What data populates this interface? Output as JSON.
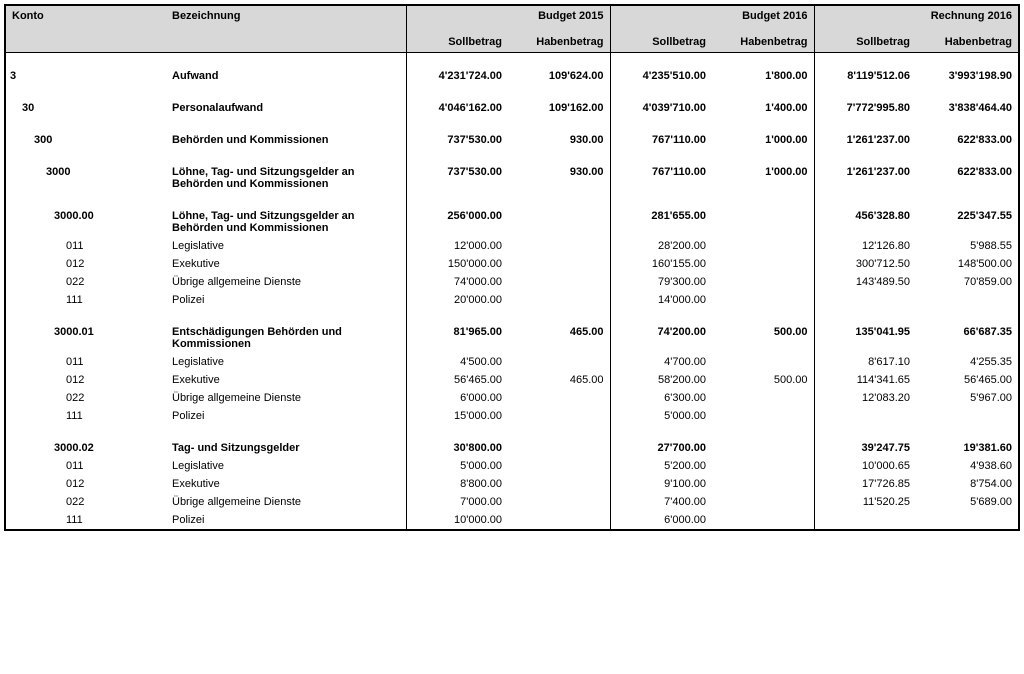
{
  "header": {
    "konto": "Konto",
    "bezeichnung": "Bezeichnung",
    "group_budget2015": "Budget 2015",
    "group_budget2016": "Budget 2016",
    "group_rechnung2016": "Rechnung 2016",
    "soll": "Sollbetrag",
    "haben": "Habenbetrag"
  },
  "rows": [
    {
      "indent": 0,
      "bold": true,
      "konto": "3",
      "bez": "Aufwand",
      "b15s": "4'231'724.00",
      "b15h": "109'624.00",
      "b16s": "4'235'510.00",
      "b16h": "1'800.00",
      "r16s": "8'119'512.06",
      "r16h": "3'993'198.90"
    },
    {
      "indent": 1,
      "bold": true,
      "konto": "30",
      "bez": "Personalaufwand",
      "b15s": "4'046'162.00",
      "b15h": "109'162.00",
      "b16s": "4'039'710.00",
      "b16h": "1'400.00",
      "r16s": "7'772'995.80",
      "r16h": "3'838'464.40"
    },
    {
      "indent": 2,
      "bold": true,
      "konto": "300",
      "bez": "Behörden und Kommissionen",
      "b15s": "737'530.00",
      "b15h": "930.00",
      "b16s": "767'110.00",
      "b16h": "1'000.00",
      "r16s": "1'261'237.00",
      "r16h": "622'833.00"
    },
    {
      "indent": 3,
      "bold": true,
      "konto": "3000",
      "bez": "Löhne, Tag- und Sitzungsgelder an Behörden und Kommissionen",
      "b15s": "737'530.00",
      "b15h": "930.00",
      "b16s": "767'110.00",
      "b16h": "1'000.00",
      "r16s": "1'261'237.00",
      "r16h": "622'833.00"
    },
    {
      "indent": 4,
      "bold": true,
      "konto": "3000.00",
      "bez": "Löhne, Tag- und Sitzungsgelder an Behörden und Kommissionen",
      "b15s": "256'000.00",
      "b15h": "",
      "b16s": "281'655.00",
      "b16h": "",
      "r16s": "456'328.80",
      "r16h": "225'347.55"
    },
    {
      "indent": 5,
      "bold": false,
      "konto": "011",
      "bez": "Legislative",
      "b15s": "12'000.00",
      "b15h": "",
      "b16s": "28'200.00",
      "b16h": "",
      "r16s": "12'126.80",
      "r16h": "5'988.55"
    },
    {
      "indent": 5,
      "bold": false,
      "konto": "012",
      "bez": "Exekutive",
      "b15s": "150'000.00",
      "b15h": "",
      "b16s": "160'155.00",
      "b16h": "",
      "r16s": "300'712.50",
      "r16h": "148'500.00"
    },
    {
      "indent": 5,
      "bold": false,
      "konto": "022",
      "bez": "Übrige allgemeine Dienste",
      "b15s": "74'000.00",
      "b15h": "",
      "b16s": "79'300.00",
      "b16h": "",
      "r16s": "143'489.50",
      "r16h": "70'859.00"
    },
    {
      "indent": 5,
      "bold": false,
      "konto": "111",
      "bez": "Polizei",
      "b15s": "20'000.00",
      "b15h": "",
      "b16s": "14'000.00",
      "b16h": "",
      "r16s": "",
      "r16h": ""
    },
    {
      "indent": 4,
      "bold": true,
      "konto": "3000.01",
      "bez": "Entschädigungen Behörden und Kommissionen",
      "b15s": "81'965.00",
      "b15h": "465.00",
      "b16s": "74'200.00",
      "b16h": "500.00",
      "r16s": "135'041.95",
      "r16h": "66'687.35"
    },
    {
      "indent": 5,
      "bold": false,
      "konto": "011",
      "bez": "Legislative",
      "b15s": "4'500.00",
      "b15h": "",
      "b16s": "4'700.00",
      "b16h": "",
      "r16s": "8'617.10",
      "r16h": "4'255.35"
    },
    {
      "indent": 5,
      "bold": false,
      "konto": "012",
      "bez": "Exekutive",
      "b15s": "56'465.00",
      "b15h": "465.00",
      "b16s": "58'200.00",
      "b16h": "500.00",
      "r16s": "114'341.65",
      "r16h": "56'465.00"
    },
    {
      "indent": 5,
      "bold": false,
      "konto": "022",
      "bez": "Übrige allgemeine Dienste",
      "b15s": "6'000.00",
      "b15h": "",
      "b16s": "6'300.00",
      "b16h": "",
      "r16s": "12'083.20",
      "r16h": "5'967.00"
    },
    {
      "indent": 5,
      "bold": false,
      "konto": "111",
      "bez": "Polizei",
      "b15s": "15'000.00",
      "b15h": "",
      "b16s": "5'000.00",
      "b16h": "",
      "r16s": "",
      "r16h": ""
    },
    {
      "indent": 4,
      "bold": true,
      "konto": "3000.02",
      "bez": "Tag- und Sitzungsgelder",
      "b15s": "30'800.00",
      "b15h": "",
      "b16s": "27'700.00",
      "b16h": "",
      "r16s": "39'247.75",
      "r16h": "19'381.60"
    },
    {
      "indent": 5,
      "bold": false,
      "konto": "011",
      "bez": "Legislative",
      "b15s": "5'000.00",
      "b15h": "",
      "b16s": "5'200.00",
      "b16h": "",
      "r16s": "10'000.65",
      "r16h": "4'938.60"
    },
    {
      "indent": 5,
      "bold": false,
      "konto": "012",
      "bez": "Exekutive",
      "b15s": "8'800.00",
      "b15h": "",
      "b16s": "9'100.00",
      "b16h": "",
      "r16s": "17'726.85",
      "r16h": "8'754.00"
    },
    {
      "indent": 5,
      "bold": false,
      "konto": "022",
      "bez": "Übrige allgemeine Dienste",
      "b15s": "7'000.00",
      "b15h": "",
      "b16s": "7'400.00",
      "b16h": "",
      "r16s": "11'520.25",
      "r16h": "5'689.00"
    },
    {
      "indent": 5,
      "bold": false,
      "konto": "111",
      "bez": "Polizei",
      "b15s": "10'000.00",
      "b15h": "",
      "b16s": "6'000.00",
      "b16h": "",
      "r16s": "",
      "r16h": ""
    }
  ],
  "spacing": {
    "big_after": [
      0,
      1,
      2,
      3,
      8,
      13
    ],
    "small_after": []
  },
  "style": {
    "header_bg": "#d8d8d8",
    "border_color": "#000000",
    "font_size": 11
  }
}
